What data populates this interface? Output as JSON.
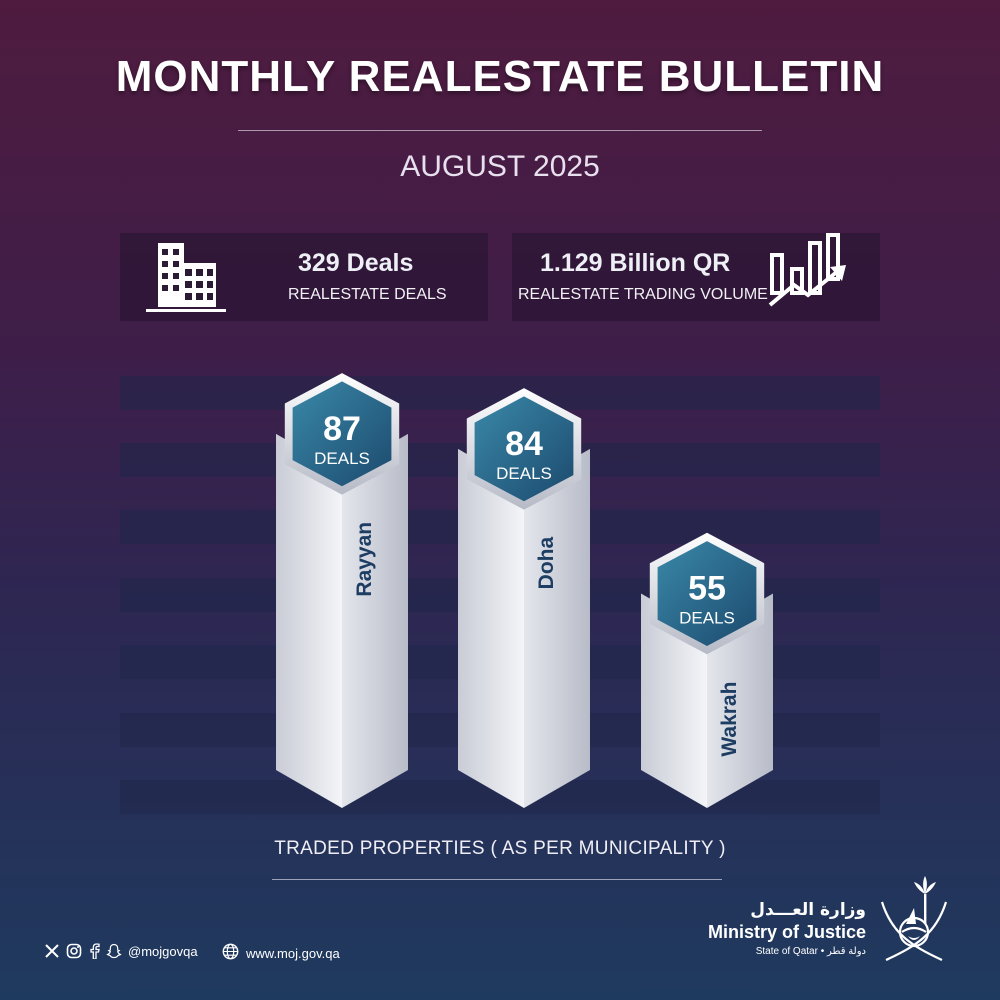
{
  "header": {
    "title": "MONTHLY REALESTATE BULLETIN",
    "period": "AUGUST 2025"
  },
  "stats": {
    "deals_value": "329 Deals",
    "deals_label": "REALESTATE DEALS",
    "deals_icon": "buildings-icon",
    "volume_value": "1.129 Billion QR",
    "volume_label": "REALESTATE TRADING VOLUME",
    "volume_icon": "growth-chart-icon"
  },
  "chart_data": {
    "type": "bar",
    "title": "",
    "xlabel": "TRADED PROPERTIES ( AS PER MUNICIPALITY )",
    "ylabel": "",
    "categories": [
      "Rayyan",
      "Doha",
      "Wakrah"
    ],
    "values": [
      87,
      84,
      55
    ],
    "value_labels": [
      "87",
      "84",
      "55"
    ],
    "unit_label": "DEALS",
    "grid": true
  },
  "footer": {
    "social_icons": [
      "x-icon",
      "instagram-icon",
      "facebook-icon",
      "snapchat-icon"
    ],
    "handle": "@mojgovqa",
    "website": "www.moj.gov.qa",
    "ministry_ar": "وزارة العـــدل",
    "ministry_en": "Ministry of Justice",
    "state_line": "State of Qatar • دولة قطر",
    "emblem_icon": "qatar-emblem-icon"
  },
  "colors": {
    "bg_top": "#4f1b3f",
    "bg_bottom": "#1f3a5f",
    "hex_badge": "#2b6d8c",
    "pillar_text": "#1d3d63"
  }
}
